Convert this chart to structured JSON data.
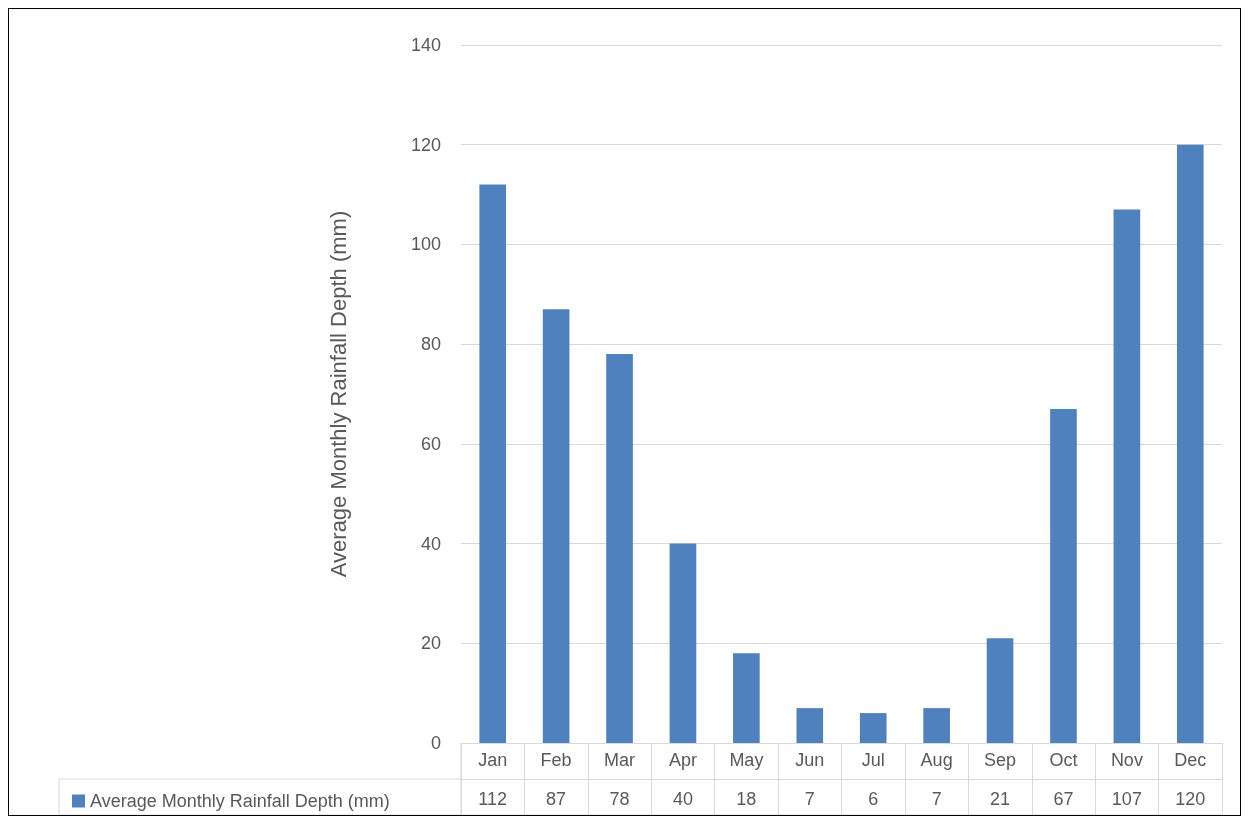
{
  "chart_data": {
    "type": "bar",
    "ylabel": "Average Monthly Rainfall Depth (mm)",
    "categories": [
      "Jan",
      "Feb",
      "Mar",
      "Apr",
      "May",
      "Jun",
      "Jul",
      "Aug",
      "Sep",
      "Oct",
      "Nov",
      "Dec"
    ],
    "series": [
      {
        "name": "Average Monthly Rainfall Depth (mm)",
        "color": "#4e81bd",
        "values": [
          112,
          87,
          78,
          40,
          18,
          7,
          6,
          7,
          21,
          67,
          107,
          120
        ]
      }
    ],
    "ylim": [
      0,
      140
    ],
    "yticks": [
      0,
      20,
      40,
      60,
      80,
      100,
      120,
      140
    ],
    "grid": "y",
    "legend": "bottom",
    "data_labels": true
  }
}
